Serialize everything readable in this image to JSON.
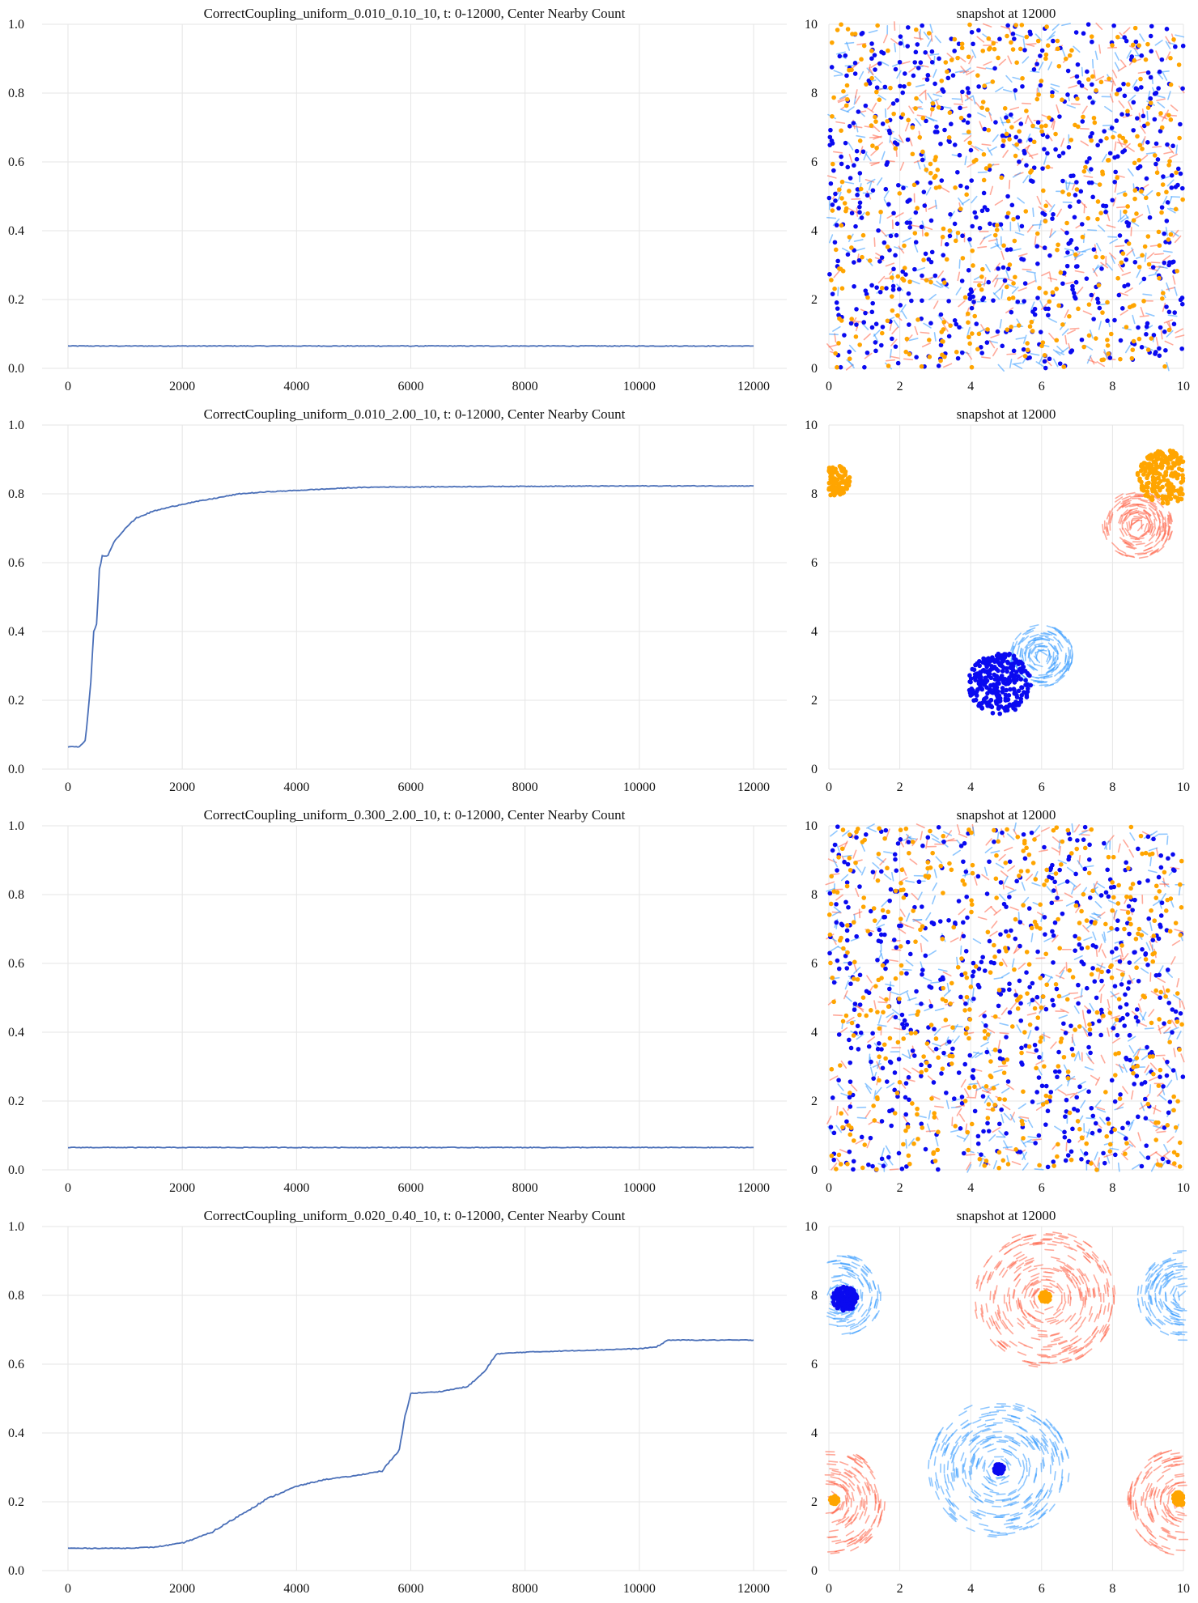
{
  "colors": {
    "line": "#4a6fb8",
    "blue_particle": "#0a0af0",
    "orange_particle": "#ffa500",
    "blue_trail": "#3399ff",
    "red_trail": "#ff6347",
    "grid": "#e6e6e6"
  },
  "chart_data": [
    {
      "type": "line",
      "title": "CorrectCoupling_uniform_0.010_0.10_10,     t: 0-12000, Center Nearby Count",
      "xlabel": "",
      "ylabel": "",
      "xlim": [
        0,
        12000
      ],
      "ylim": [
        0,
        1.0
      ],
      "xticks": [
        "0",
        "2000",
        "4000",
        "6000",
        "8000",
        "10000",
        "12000"
      ],
      "yticks": [
        "0.0",
        "0.2",
        "0.4",
        "0.6",
        "0.8",
        "1.0"
      ],
      "grid": true,
      "x": [
        0,
        12000
      ],
      "y": [
        0.065,
        0.065
      ]
    },
    {
      "type": "scatter",
      "title": "snapshot at 12000",
      "xlim": [
        0,
        10
      ],
      "ylim": [
        0,
        10
      ],
      "xticks": [
        "0",
        "2",
        "4",
        "6",
        "8",
        "10"
      ],
      "yticks": [
        "0",
        "2",
        "4",
        "6",
        "8",
        "10"
      ],
      "grid": true,
      "pattern": "uniform",
      "series": [
        {
          "particle": "blue",
          "count": 600
        },
        {
          "particle": "orange",
          "count": 420
        }
      ]
    },
    {
      "type": "line",
      "title": "CorrectCoupling_uniform_0.010_2.00_10,     t: 0-12000, Center Nearby Count",
      "xlabel": "",
      "ylabel": "",
      "xlim": [
        0,
        12000
      ],
      "ylim": [
        0,
        1.0
      ],
      "xticks": [
        "0",
        "2000",
        "4000",
        "6000",
        "8000",
        "10000",
        "12000"
      ],
      "yticks": [
        "0.0",
        "0.2",
        "0.4",
        "0.6",
        "0.8",
        "1.0"
      ],
      "grid": true,
      "x": [
        0,
        200,
        300,
        400,
        450,
        500,
        550,
        600,
        700,
        800,
        1000,
        1200,
        1500,
        2000,
        2500,
        3000,
        3500,
        4000,
        4500,
        5000,
        5500,
        6000,
        8000,
        10000,
        12000
      ],
      "y": [
        0.065,
        0.065,
        0.08,
        0.25,
        0.4,
        0.42,
        0.58,
        0.62,
        0.62,
        0.66,
        0.7,
        0.73,
        0.75,
        0.77,
        0.785,
        0.8,
        0.806,
        0.81,
        0.814,
        0.818,
        0.82,
        0.82,
        0.822,
        0.823,
        0.823
      ]
    },
    {
      "type": "scatter",
      "title": "snapshot at 12000",
      "xlim": [
        0,
        10
      ],
      "ylim": [
        0,
        10
      ],
      "xticks": [
        "0",
        "2",
        "4",
        "6",
        "8",
        "10"
      ],
      "yticks": [
        "0",
        "2",
        "4",
        "6",
        "8",
        "10"
      ],
      "grid": true,
      "pattern": "clusters",
      "clusters": [
        {
          "particle": "blue",
          "center": [
            4.8,
            2.5
          ],
          "radius": 0.9
        },
        {
          "particle": "orange",
          "center": [
            9.5,
            8.5
          ],
          "radius": 0.8
        },
        {
          "particle": "orange",
          "center": [
            0.15,
            8.4
          ],
          "radius": 0.45
        },
        {
          "trail": "blue",
          "center": [
            6.0,
            3.3
          ],
          "radius": 0.9
        },
        {
          "trail": "red",
          "center": [
            8.7,
            7.1
          ],
          "radius": 1.0
        }
      ]
    },
    {
      "type": "line",
      "title": "CorrectCoupling_uniform_0.300_2.00_10,     t: 0-12000, Center Nearby Count",
      "xlabel": "",
      "ylabel": "",
      "xlim": [
        0,
        12000
      ],
      "ylim": [
        0,
        1.0
      ],
      "xticks": [
        "0",
        "2000",
        "4000",
        "6000",
        "8000",
        "10000",
        "12000"
      ],
      "yticks": [
        "0.0",
        "0.2",
        "0.4",
        "0.6",
        "0.8",
        "1.0"
      ],
      "grid": true,
      "x": [
        0,
        12000
      ],
      "y": [
        0.065,
        0.065
      ]
    },
    {
      "type": "scatter",
      "title": "snapshot at 12000",
      "xlim": [
        0,
        10
      ],
      "ylim": [
        0,
        10
      ],
      "xticks": [
        "0",
        "2",
        "4",
        "6",
        "8",
        "10"
      ],
      "yticks": [
        "0",
        "2",
        "4",
        "6",
        "8",
        "10"
      ],
      "grid": true,
      "pattern": "uniform",
      "series": [
        {
          "particle": "blue",
          "count": 560
        },
        {
          "particle": "orange",
          "count": 460
        }
      ]
    },
    {
      "type": "line",
      "title": "CorrectCoupling_uniform_0.020_0.40_10,     t: 0-12000, Center Nearby Count",
      "xlabel": "",
      "ylabel": "",
      "xlim": [
        0,
        12000
      ],
      "ylim": [
        0,
        1.0
      ],
      "xticks": [
        "0",
        "2000",
        "4000",
        "6000",
        "8000",
        "10000",
        "12000"
      ],
      "yticks": [
        "0.0",
        "0.2",
        "0.4",
        "0.6",
        "0.8",
        "1.0"
      ],
      "grid": true,
      "x": [
        0,
        1000,
        1500,
        2000,
        2500,
        3000,
        3500,
        4000,
        4500,
        5000,
        5500,
        5800,
        5900,
        6000,
        6500,
        7000,
        7300,
        7500,
        8000,
        9000,
        10000,
        10300,
        10500,
        11000,
        12000
      ],
      "y": [
        0.065,
        0.065,
        0.068,
        0.08,
        0.11,
        0.16,
        0.21,
        0.245,
        0.265,
        0.275,
        0.29,
        0.35,
        0.45,
        0.515,
        0.52,
        0.535,
        0.58,
        0.63,
        0.635,
        0.64,
        0.645,
        0.65,
        0.67,
        0.67,
        0.67
      ]
    },
    {
      "type": "scatter",
      "title": "snapshot at 12000",
      "xlim": [
        0,
        10
      ],
      "ylim": [
        0,
        10
      ],
      "xticks": [
        "0",
        "2",
        "4",
        "6",
        "8",
        "10"
      ],
      "yticks": [
        "0",
        "2",
        "4",
        "6",
        "8",
        "10"
      ],
      "grid": true,
      "pattern": "vortices",
      "clusters": [
        {
          "particle": "blue",
          "center": [
            0.45,
            7.9
          ],
          "radius": 0.35
        },
        {
          "particle": "orange",
          "center": [
            6.1,
            7.95
          ],
          "radius": 0.15
        },
        {
          "particle": "blue",
          "center": [
            4.8,
            2.95
          ],
          "radius": 0.15
        },
        {
          "particle": "orange",
          "center": [
            0.15,
            2.05
          ],
          "radius": 0.12
        },
        {
          "particle": "orange",
          "center": [
            9.9,
            2.1
          ],
          "radius": 0.2
        },
        {
          "trail": "red",
          "center": [
            6.1,
            7.9
          ],
          "radius": 2.0
        },
        {
          "trail": "blue",
          "center": [
            4.8,
            2.95
          ],
          "radius": 2.0
        },
        {
          "trail": "blue",
          "center": [
            0.3,
            8.0
          ],
          "radius": 1.2
        },
        {
          "trail": "blue",
          "center": [
            10.0,
            8.0
          ],
          "radius": 1.3
        },
        {
          "trail": "red",
          "center": [
            0.0,
            2.0
          ],
          "radius": 1.6
        },
        {
          "trail": "red",
          "center": [
            10.0,
            2.0
          ],
          "radius": 1.6
        }
      ]
    }
  ]
}
